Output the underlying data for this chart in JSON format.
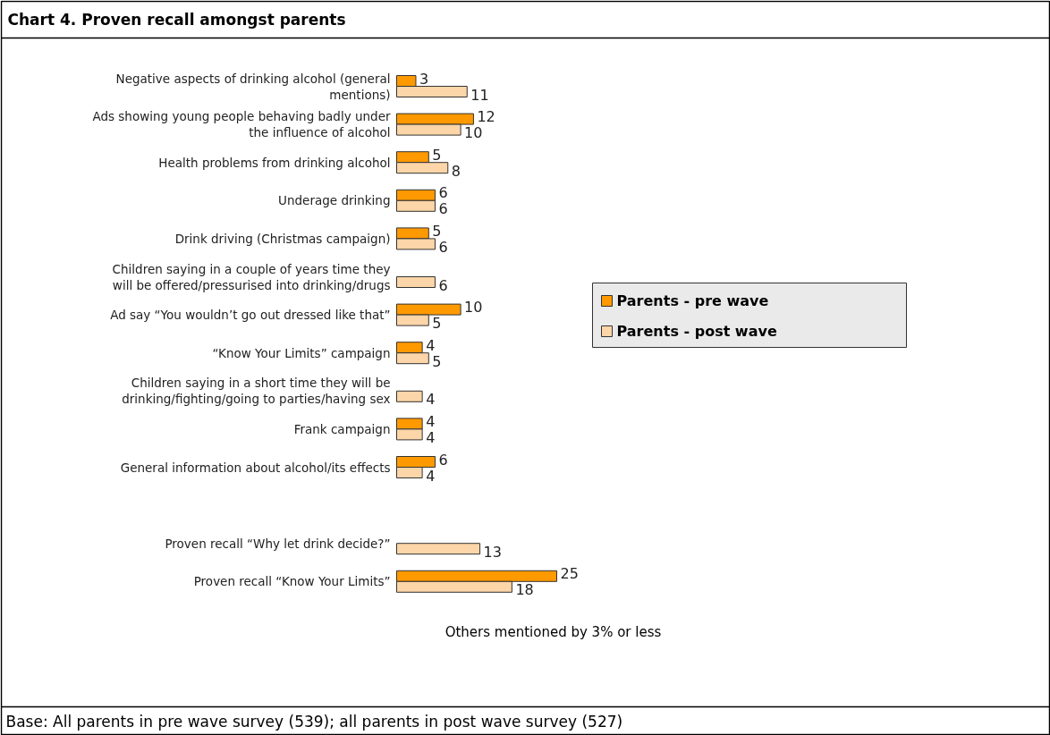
{
  "chart_data": {
    "type": "bar",
    "orientation": "horizontal",
    "title": "Chart 4.      Proven recall amongst parents",
    "categories": [
      "Negative aspects of drinking alcohol (general mentions)",
      "Ads showing young people behaving badly under the influence of alcohol",
      "Health problems from drinking alcohol",
      "Underage drinking",
      "Drink driving (Christmas campaign)",
      "Children saying in a couple of years time they will be offered/pressurised into drinking/drugs",
      "Ad say “You wouldn’t go out dressed like that”",
      "“Know Your Limits” campaign",
      "Children saying in a short time they will be drinking/fighting/going to parties/having sex",
      "Frank campaign",
      "General information about alcohol/its effects",
      null,
      "Proven recall “Why let drink decide?”",
      "Proven recall “Know Your Limits”"
    ],
    "series": [
      {
        "name": "Parents - pre wave",
        "color": "#ff9900",
        "values": [
          3,
          12,
          5,
          6,
          5,
          null,
          10,
          4,
          null,
          4,
          6,
          null,
          null,
          25
        ]
      },
      {
        "name": "Parents - post wave",
        "color": "#fcd5a8",
        "values": [
          11,
          10,
          8,
          6,
          6,
          6,
          5,
          5,
          4,
          4,
          4,
          null,
          13,
          18
        ]
      }
    ],
    "data_labels": true,
    "legend": "right",
    "grid": false,
    "annotations": [
      "Others mentioned by 3% or less",
      "Base: All parents in pre wave survey (539); all parents in post wave survey (527)"
    ]
  }
}
